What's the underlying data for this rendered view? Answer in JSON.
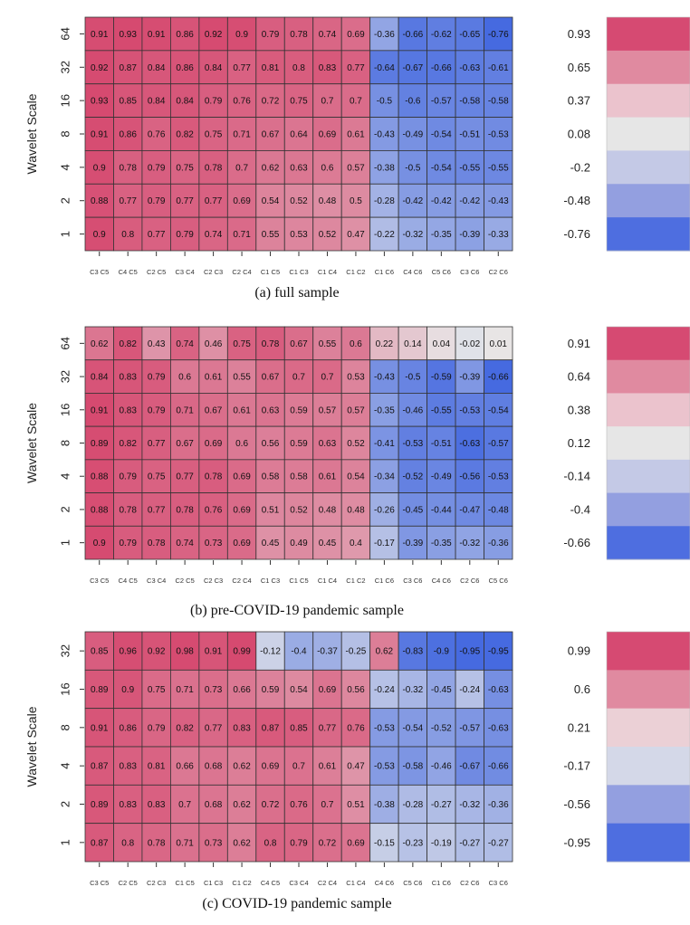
{
  "chart_data": [
    {
      "type": "heatmap",
      "caption": "(a) full sample",
      "ylabel": "Wavelet Scale",
      "y_categories": [
        "64",
        "32",
        "16",
        "8",
        "4",
        "2",
        "1"
      ],
      "x_categories": [
        "C3 C5",
        "C4 C5",
        "C2 C5",
        "C3 C4",
        "C2 C3",
        "C2 C4",
        "C1 C5",
        "C1 C3",
        "C1 C4",
        "C1 C2",
        "C1 C6",
        "C4 C6",
        "C5 C6",
        "C3 C6",
        "C2 C6"
      ],
      "values": [
        [
          "0.91",
          "0.93",
          "0.91",
          "0.86",
          "0.92",
          "0.9",
          "0.79",
          "0.78",
          "0.74",
          "0.69",
          "-0.36",
          "-0.66",
          "-0.62",
          "-0.65",
          "-0.76"
        ],
        [
          "0.92",
          "0.87",
          "0.84",
          "0.86",
          "0.84",
          "0.77",
          "0.81",
          "0.8",
          "0.83",
          "0.77",
          "-0.64",
          "-0.67",
          "-0.66",
          "-0.63",
          "-0.61"
        ],
        [
          "0.93",
          "0.85",
          "0.84",
          "0.84",
          "0.79",
          "0.76",
          "0.72",
          "0.75",
          "0.7",
          "0.7",
          "-0.5",
          "-0.6",
          "-0.57",
          "-0.58",
          "-0.58"
        ],
        [
          "0.91",
          "0.86",
          "0.76",
          "0.82",
          "0.75",
          "0.71",
          "0.67",
          "0.64",
          "0.69",
          "0.61",
          "-0.43",
          "-0.49",
          "-0.54",
          "-0.51",
          "-0.53"
        ],
        [
          "0.9",
          "0.78",
          "0.79",
          "0.75",
          "0.78",
          "0.7",
          "0.62",
          "0.63",
          "0.6",
          "0.57",
          "-0.38",
          "-0.5",
          "-0.54",
          "-0.55",
          "-0.55"
        ],
        [
          "0.88",
          "0.77",
          "0.79",
          "0.77",
          "0.77",
          "0.69",
          "0.54",
          "0.52",
          "0.48",
          "0.5",
          "-0.28",
          "-0.42",
          "-0.42",
          "-0.42",
          "-0.43"
        ],
        [
          "0.9",
          "0.8",
          "0.77",
          "0.79",
          "0.74",
          "0.71",
          "0.55",
          "0.53",
          "0.52",
          "0.47",
          "-0.22",
          "-0.32",
          "-0.35",
          "-0.39",
          "-0.33"
        ]
      ],
      "legend_breaks": [
        "0.93",
        "0.65",
        "0.37",
        "0.08",
        "-0.2",
        "-0.48",
        "-0.76"
      ],
      "legend_colors": [
        "#d64a72",
        "#e08aa0",
        "#ebc3cd",
        "#e6e6e6",
        "#c4c9e6",
        "#939fe0",
        "#4e6ee0"
      ]
    },
    {
      "type": "heatmap",
      "caption": "(b) pre-COVID-19 pandemic sample",
      "ylabel": "Wavelet Scale",
      "y_categories": [
        "64",
        "32",
        "16",
        "8",
        "4",
        "2",
        "1"
      ],
      "x_categories": [
        "C3 C5",
        "C4 C5",
        "C3 C4",
        "C2 C5",
        "C2 C3",
        "C2 C4",
        "C1 C3",
        "C1 C5",
        "C1 C4",
        "C1 C2",
        "C1 C6",
        "C3 C6",
        "C4 C6",
        "C2 C6",
        "C5 C6"
      ],
      "values": [
        [
          "0.62",
          "0.82",
          "0.43",
          "0.74",
          "0.46",
          "0.75",
          "0.78",
          "0.67",
          "0.55",
          "0.6",
          "0.22",
          "0.14",
          "0.04",
          "-0.02",
          "0.01"
        ],
        [
          "0.84",
          "0.83",
          "0.79",
          "0.6",
          "0.61",
          "0.55",
          "0.67",
          "0.7",
          "0.7",
          "0.53",
          "-0.43",
          "-0.5",
          "-0.59",
          "-0.39",
          "-0.66"
        ],
        [
          "0.91",
          "0.83",
          "0.79",
          "0.71",
          "0.67",
          "0.61",
          "0.63",
          "0.59",
          "0.57",
          "0.57",
          "-0.35",
          "-0.46",
          "-0.55",
          "-0.53",
          "-0.54"
        ],
        [
          "0.89",
          "0.82",
          "0.77",
          "0.67",
          "0.69",
          "0.6",
          "0.56",
          "0.59",
          "0.63",
          "0.52",
          "-0.41",
          "-0.53",
          "-0.51",
          "-0.63",
          "-0.57"
        ],
        [
          "0.88",
          "0.79",
          "0.75",
          "0.77",
          "0.78",
          "0.69",
          "0.58",
          "0.58",
          "0.61",
          "0.54",
          "-0.34",
          "-0.52",
          "-0.49",
          "-0.56",
          "-0.53"
        ],
        [
          "0.88",
          "0.78",
          "0.77",
          "0.78",
          "0.76",
          "0.69",
          "0.51",
          "0.52",
          "0.48",
          "0.48",
          "-0.26",
          "-0.45",
          "-0.44",
          "-0.47",
          "-0.48"
        ],
        [
          "0.9",
          "0.79",
          "0.78",
          "0.74",
          "0.73",
          "0.69",
          "0.45",
          "0.49",
          "0.45",
          "0.4",
          "-0.17",
          "-0.39",
          "-0.35",
          "-0.32",
          "-0.36"
        ]
      ],
      "legend_breaks": [
        "0.91",
        "0.64",
        "0.38",
        "0.12",
        "-0.14",
        "-0.4",
        "-0.66"
      ],
      "legend_colors": [
        "#d64a72",
        "#e08aa0",
        "#ebc3cd",
        "#e6e6e6",
        "#c4c9e6",
        "#939fe0",
        "#4e6ee0"
      ]
    },
    {
      "type": "heatmap",
      "caption": "(c) COVID-19 pandemic sample",
      "ylabel": "Wavelet Scale",
      "y_categories": [
        "32",
        "16",
        "8",
        "4",
        "2",
        "1"
      ],
      "x_categories": [
        "C3 C5",
        "C2 C5",
        "C2 C3",
        "C1 C5",
        "C1 C3",
        "C1 C2",
        "C4 C5",
        "C3 C4",
        "C2 C4",
        "C1 C4",
        "C4 C6",
        "C5 C6",
        "C1 C6",
        "C2 C6",
        "C3 C6"
      ],
      "values": [
        [
          "0.85",
          "0.96",
          "0.92",
          "0.98",
          "0.91",
          "0.99",
          "-0.12",
          "-0.4",
          "-0.37",
          "-0.25",
          "0.62",
          "-0.83",
          "-0.9",
          "-0.95",
          "-0.95"
        ],
        [
          "0.89",
          "0.9",
          "0.75",
          "0.71",
          "0.73",
          "0.66",
          "0.59",
          "0.54",
          "0.69",
          "0.56",
          "-0.24",
          "-0.32",
          "-0.45",
          "-0.24",
          "-0.63"
        ],
        [
          "0.91",
          "0.86",
          "0.79",
          "0.82",
          "0.77",
          "0.83",
          "0.87",
          "0.85",
          "0.77",
          "0.76",
          "-0.53",
          "-0.54",
          "-0.52",
          "-0.57",
          "-0.63"
        ],
        [
          "0.87",
          "0.83",
          "0.81",
          "0.66",
          "0.68",
          "0.62",
          "0.69",
          "0.7",
          "0.61",
          "0.47",
          "-0.53",
          "-0.58",
          "-0.46",
          "-0.67",
          "-0.66"
        ],
        [
          "0.89",
          "0.83",
          "0.83",
          "0.7",
          "0.68",
          "0.62",
          "0.72",
          "0.76",
          "0.7",
          "0.51",
          "-0.38",
          "-0.28",
          "-0.27",
          "-0.32",
          "-0.36"
        ],
        [
          "0.87",
          "0.8",
          "0.78",
          "0.71",
          "0.73",
          "0.62",
          "0.8",
          "0.79",
          "0.72",
          "0.69",
          "-0.15",
          "-0.23",
          "-0.19",
          "-0.27",
          "-0.27"
        ]
      ],
      "legend_breaks": [
        "0.99",
        "0.6",
        "0.21",
        "-0.17",
        "-0.56",
        "-0.95"
      ],
      "legend_colors": [
        "#d64a72",
        "#e08aa0",
        "#ebd0d6",
        "#d4d8e8",
        "#939fe0",
        "#4e6ee0"
      ]
    }
  ]
}
